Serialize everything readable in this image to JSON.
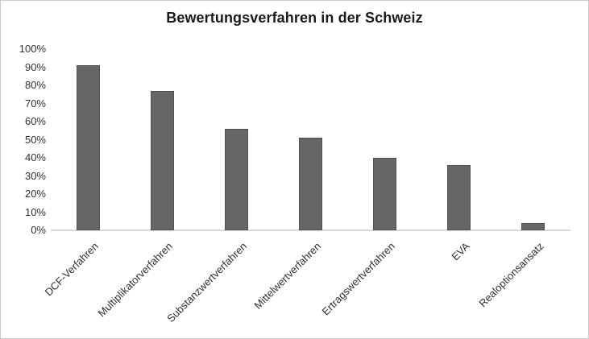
{
  "chart_data": {
    "type": "bar",
    "title": "Bewertungsverfahren in der Schweiz",
    "categories": [
      "DCF-Verfahren",
      "Multiplikatorverfahren",
      "Substanzwertverfahren",
      "Mittelwertverfahren",
      "Ertragswertverfahren",
      "EVA",
      "Realoptionsansatz"
    ],
    "values": [
      91,
      77,
      56,
      51,
      40,
      36,
      4
    ],
    "xlabel": "",
    "ylabel": "",
    "ylim": [
      0,
      100
    ],
    "ytick_step": 10,
    "ytick_labels": [
      "0%",
      "10%",
      "20%",
      "30%",
      "40%",
      "50%",
      "60%",
      "70%",
      "80%",
      "90%",
      "100%"
    ],
    "grid": false,
    "legend": false,
    "x_label_rotation_deg": 45,
    "bar_color": "#666666",
    "bar_border_color": "#515151",
    "axis_line_color": "#d9d9d9",
    "text_color": "#303030",
    "title_color": "#1a1a1a",
    "background": "#ffffff",
    "border_color": "#c9c9c9"
  }
}
